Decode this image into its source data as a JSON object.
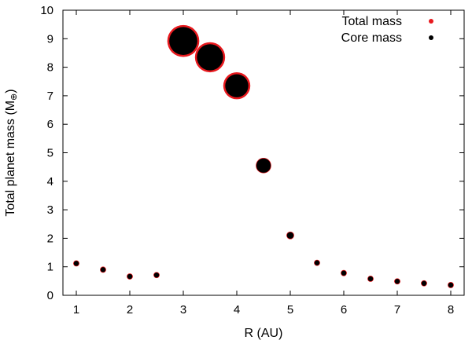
{
  "chart_data": {
    "type": "scatter",
    "title": "",
    "xlabel": "R (AU)",
    "ylabel_main": "Total planet mass (M",
    "ylabel_sub": "⊕",
    "ylabel_close": ")",
    "xlim": [
      0.75,
      8.25
    ],
    "ylim": [
      0,
      10
    ],
    "xticks": [
      "1",
      "2",
      "3",
      "4",
      "5",
      "6",
      "7",
      "8"
    ],
    "yticks": [
      "0",
      "1",
      "2",
      "3",
      "4",
      "5",
      "6",
      "7",
      "8",
      "9",
      "10"
    ],
    "grid": false,
    "legend_position": "top-right",
    "series": [
      {
        "name": "Total mass",
        "color": "#e8191e",
        "x": [
          1.0,
          1.5,
          2.0,
          2.5,
          3.0,
          3.5,
          4.0,
          4.5,
          5.0,
          5.5,
          6.0,
          6.5,
          7.0,
          7.5,
          8.0
        ],
        "y": [
          1.12,
          0.9,
          0.66,
          0.71,
          8.92,
          8.35,
          7.35,
          4.55,
          2.1,
          1.14,
          0.78,
          0.58,
          0.49,
          0.42,
          0.36
        ]
      },
      {
        "name": "Core mass",
        "color": "#000000",
        "x": [
          1.0,
          1.5,
          2.0,
          2.5,
          3.0,
          3.5,
          4.0,
          4.5,
          5.0,
          5.5,
          6.0,
          6.5,
          7.0,
          7.5,
          8.0
        ],
        "y": [
          1.12,
          0.9,
          0.66,
          0.71,
          8.92,
          8.35,
          7.35,
          4.55,
          2.1,
          1.14,
          0.78,
          0.58,
          0.49,
          0.42,
          0.36
        ]
      }
    ]
  }
}
